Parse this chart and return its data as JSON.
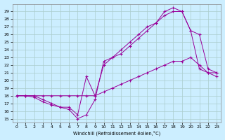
{
  "background_color": "#cceeff",
  "grid_color": "#aacccc",
  "line_color": "#990099",
  "xlabel": "Windchill (Refroidissement éolien,°C)",
  "xlim": [
    -0.5,
    23.5
  ],
  "ylim": [
    14.5,
    30.0
  ],
  "xticks": [
    0,
    1,
    2,
    3,
    4,
    5,
    6,
    7,
    8,
    9,
    10,
    11,
    12,
    13,
    14,
    15,
    16,
    17,
    18,
    19,
    20,
    21,
    22,
    23
  ],
  "yticks": [
    15,
    16,
    17,
    18,
    19,
    20,
    21,
    22,
    23,
    24,
    25,
    26,
    27,
    28,
    29
  ],
  "line1_x": [
    0,
    1,
    2,
    3,
    4,
    5,
    6,
    7,
    8,
    9,
    10,
    11,
    12,
    13,
    14,
    15,
    16,
    17,
    18,
    19,
    20,
    21,
    22,
    23
  ],
  "line1_y": [
    18,
    18,
    18,
    18,
    18,
    18,
    18,
    18,
    18,
    18,
    18.5,
    19,
    19.5,
    20,
    20.5,
    21,
    21.5,
    22,
    22.5,
    22.5,
    23,
    22,
    21,
    21
  ],
  "line2_x": [
    0,
    1,
    2,
    3,
    4,
    5,
    6,
    7,
    8,
    9,
    10,
    11,
    12,
    13,
    14,
    15,
    16,
    17,
    18,
    19,
    20,
    21,
    22,
    23
  ],
  "line2_y": [
    18,
    18,
    17.8,
    17.2,
    16.8,
    16.5,
    16.2,
    15,
    15.5,
    17.5,
    22.5,
    23,
    23.5,
    24.5,
    25.5,
    26.5,
    27.5,
    28.5,
    29,
    29,
    26.5,
    21.5,
    21,
    20.5
  ],
  "line3_x": [
    0,
    1,
    2,
    3,
    4,
    5,
    6,
    7,
    8,
    9,
    10,
    11,
    12,
    13,
    14,
    15,
    16,
    17,
    18,
    19,
    20,
    21,
    22,
    23
  ],
  "line3_y": [
    18,
    18,
    18,
    17.5,
    17,
    16.5,
    16.5,
    15.5,
    20.5,
    18,
    22,
    23,
    24,
    25,
    26,
    27,
    27.5,
    29,
    29.5,
    29,
    26.5,
    26,
    21.5,
    21
  ]
}
